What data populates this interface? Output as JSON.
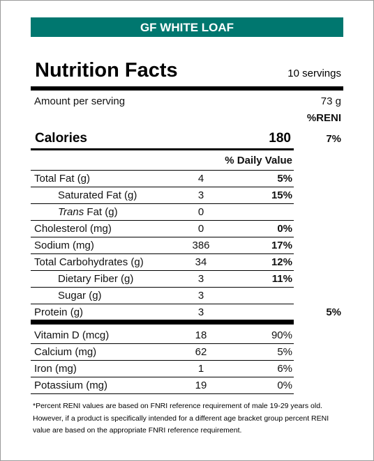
{
  "header": {
    "title": "GF WHITE LOAF"
  },
  "label": {
    "title": "Nutrition Facts",
    "servings": "10 servings",
    "amount_label": "Amount per serving",
    "amount": "73 g",
    "reni_header": "%RENI",
    "calories": {
      "name": "Calories",
      "value": 180,
      "reni": "7%"
    },
    "dv_header": "% Daily Value",
    "nutrients": [
      {
        "name": "Total Fat (g)",
        "amount": 4,
        "dv": "5%",
        "sub": [
          {
            "name": "Saturated Fat (g)",
            "amount": 3,
            "dv": "15%"
          },
          {
            "name_italic": "Trans",
            "name": "Fat (g)",
            "amount": 0
          }
        ]
      },
      {
        "name": "Cholesterol (mg)",
        "amount": 0,
        "dv": "0%"
      },
      {
        "name": "Sodium (mg)",
        "amount": 386,
        "dv": "17%"
      },
      {
        "name": "Total Carbohydrates (g)",
        "amount": 34,
        "dv": "12%",
        "sub": [
          {
            "name": "Dietary Fiber (g)",
            "amount": 3,
            "dv": "11%"
          },
          {
            "name": "Sugar (g)",
            "amount": 3
          }
        ]
      },
      {
        "name": "Protein (g)",
        "amount": 3,
        "reni": "5%"
      }
    ],
    "vitamins": [
      {
        "name": "Vitamin D (mcg)",
        "amount": 18,
        "dv": "90%"
      },
      {
        "name": "Calcium (mg)",
        "amount": 62,
        "dv": "5%"
      },
      {
        "name": "Iron (mg)",
        "amount": 1,
        "dv": "6%"
      },
      {
        "name": "Potassium (mg)",
        "amount": 19,
        "dv": "0%"
      }
    ],
    "footnote": "*Percent RENI values are based on FNRI reference requirement of male 19-29 years old. However, if a product is specifically intended for a different age bracket group percent RENI value are based on the appropriate FNRI reference requirement."
  }
}
